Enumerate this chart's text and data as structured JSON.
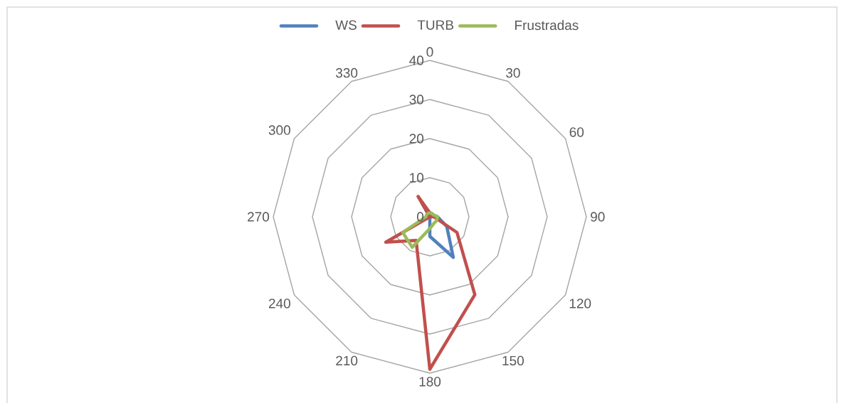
{
  "chart_data": {
    "type": "radar",
    "categories": [
      "0",
      "30",
      "60",
      "90",
      "120",
      "150",
      "180",
      "210",
      "240",
      "270",
      "300",
      "330"
    ],
    "series": [
      {
        "name": "WS",
        "color": "#4f81bd",
        "values": [
          1,
          1,
          1,
          2,
          5,
          12,
          5,
          0,
          0,
          0,
          0,
          4
        ]
      },
      {
        "name": "TURB",
        "color": "#c0504d",
        "values": [
          1,
          0,
          0,
          1,
          8,
          23,
          39,
          7,
          13,
          0,
          0,
          6
        ]
      },
      {
        "name": "Frustradas",
        "color": "#9bbb59",
        "values": [
          1,
          1,
          1,
          2,
          2,
          2,
          3,
          9,
          8,
          1,
          1,
          1
        ]
      }
    ],
    "ylim": [
      0,
      40
    ],
    "yticks": [
      0,
      10,
      20,
      30,
      40
    ],
    "grid": true,
    "legend": "top"
  }
}
